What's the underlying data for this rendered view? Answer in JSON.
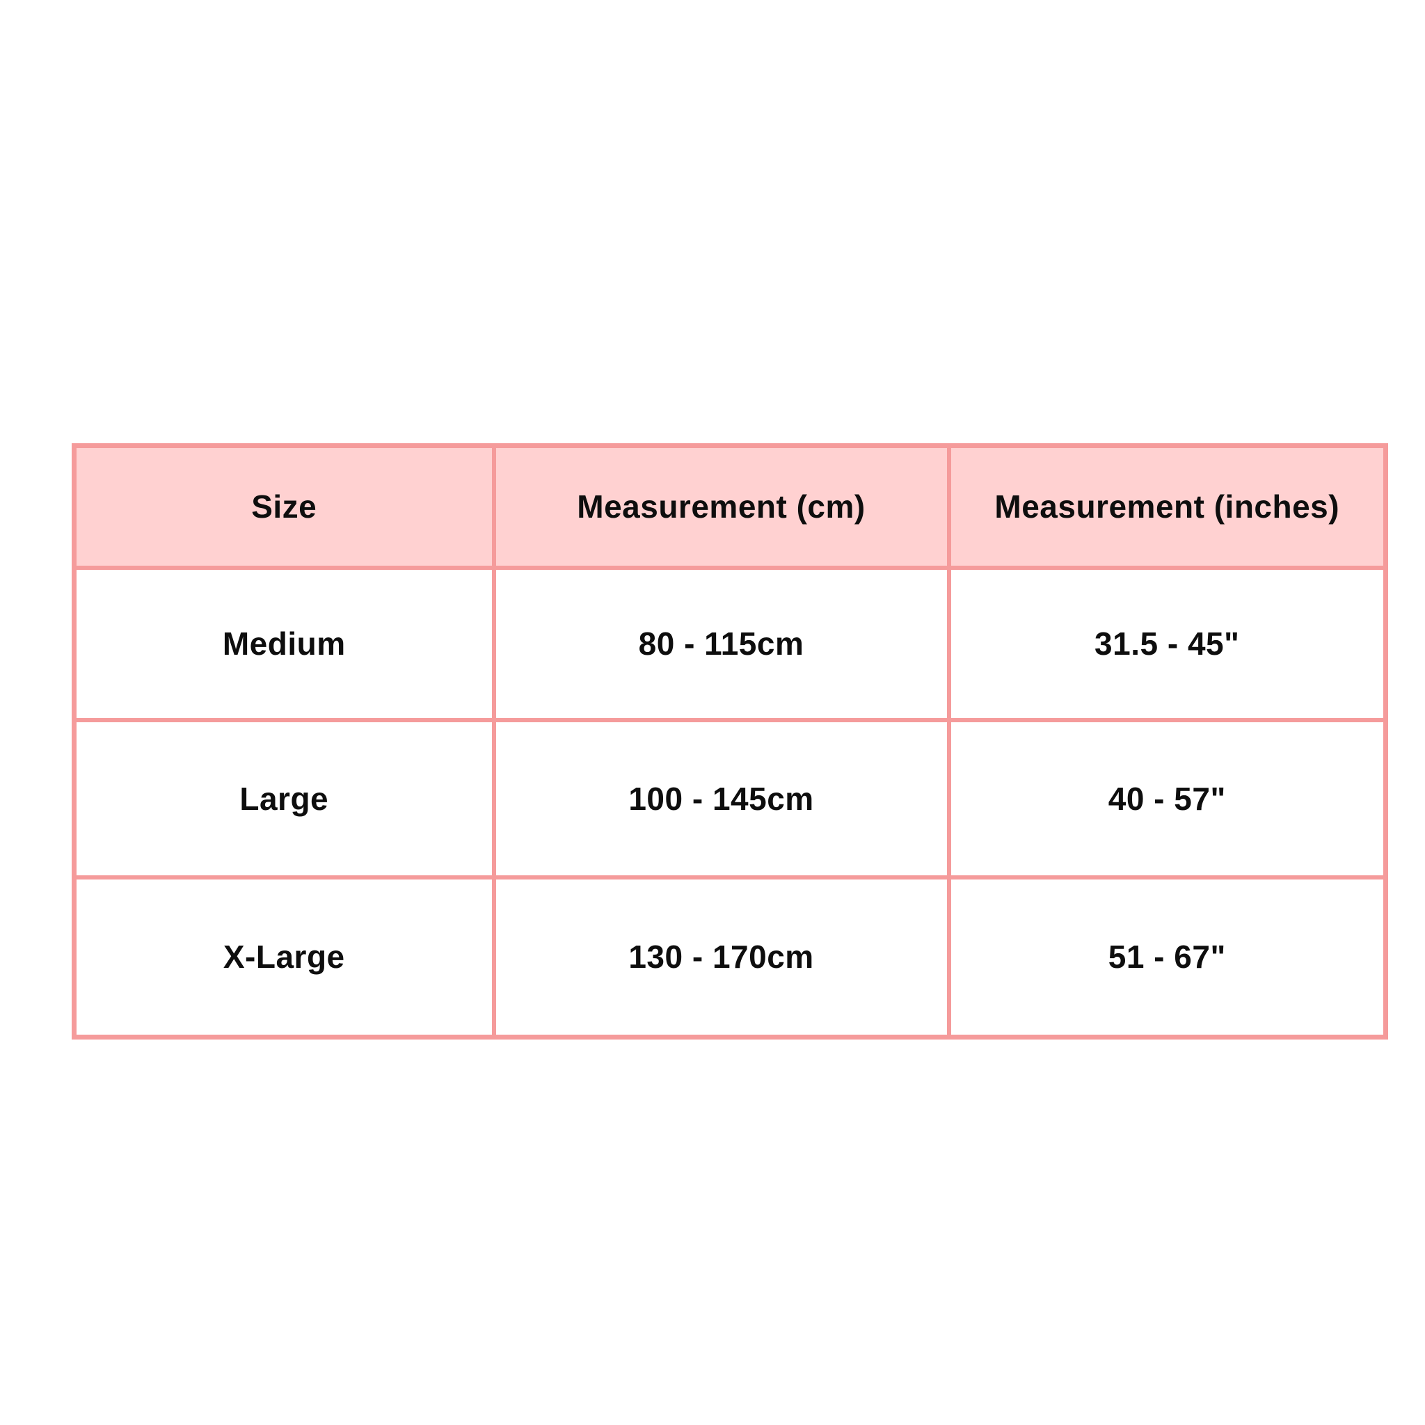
{
  "canvas": {
    "background": "#ffffff"
  },
  "colors": {
    "header_bg": "#ffd1d1",
    "border": "#f59b9b",
    "text": "#0e0e0e",
    "cell_bg": "#ffffff"
  },
  "size_chart": {
    "headers": [
      "Size",
      "Measurement (cm)",
      "Measurement (inches)"
    ],
    "rows": [
      {
        "size": "Medium",
        "cm": "80 - 115cm",
        "inches": "31.5 - 45\""
      },
      {
        "size": "Large",
        "cm": "100 - 145cm",
        "inches": "40 - 57\""
      },
      {
        "size": "X-Large",
        "cm": "130 - 170cm",
        "inches": "51 - 67\""
      }
    ]
  },
  "chart_data": {
    "type": "table",
    "title": "",
    "columns": [
      "Size",
      "Measurement (cm)",
      "Measurement (inches)"
    ],
    "rows": [
      [
        "Medium",
        "80 - 115cm",
        "31.5 - 45\""
      ],
      [
        "Large",
        "100 - 145cm",
        "40 - 57\""
      ],
      [
        "X-Large",
        "130 - 170cm",
        "51 - 67\""
      ]
    ],
    "layout": {
      "header_fill": "#ffd1d1",
      "grid_color": "#f59b9b",
      "grid_on": true,
      "legend_position": "none"
    }
  }
}
